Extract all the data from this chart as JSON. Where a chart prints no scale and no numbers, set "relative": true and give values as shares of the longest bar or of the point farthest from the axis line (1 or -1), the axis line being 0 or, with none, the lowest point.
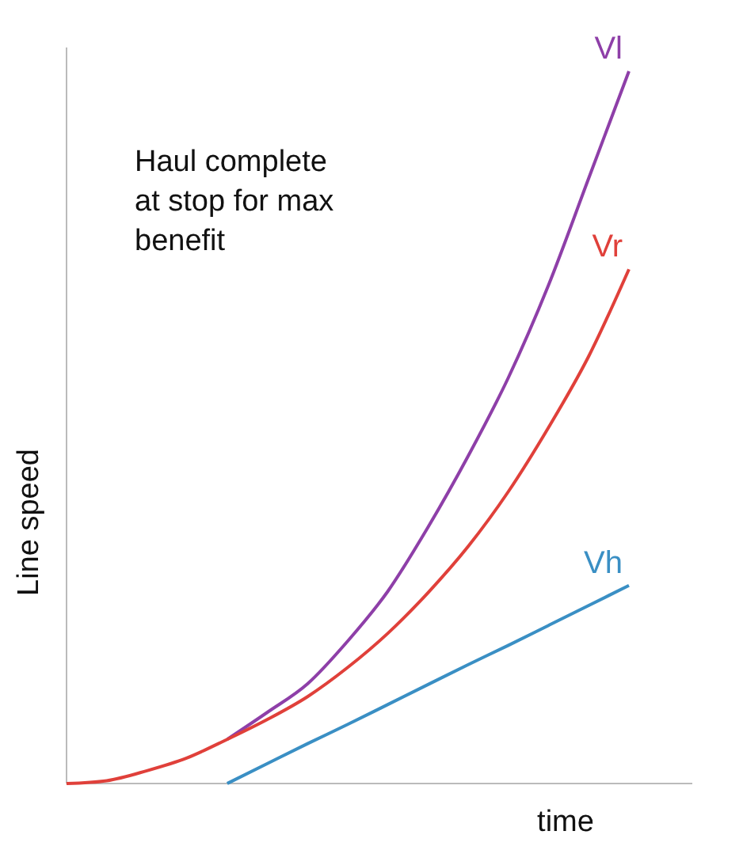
{
  "chart_data": {
    "type": "line",
    "relative": true,
    "xlabel": "time",
    "ylabel": "Line speed",
    "annotations": [
      "Haul complete at stop for max benefit"
    ],
    "categories": [
      null,
      null,
      null,
      null,
      null,
      null,
      null,
      null,
      null,
      null,
      null,
      null,
      null,
      null,
      null
    ],
    "series": [
      {
        "name": "Vl",
        "color": "#8e3fa8",
        "values": [
          null,
          null,
          null,
          null,
          0.062,
          0.1,
          0.14,
          0.2,
          0.27,
          0.36,
          0.46,
          0.57,
          0.7,
          0.85,
          1.0
        ]
      },
      {
        "name": "Vr",
        "color": "#e0403a",
        "values": [
          0,
          0.004,
          0.018,
          0.036,
          0.062,
          0.09,
          0.122,
          0.163,
          0.211,
          0.268,
          0.333,
          0.41,
          0.5,
          0.6,
          0.722
        ]
      },
      {
        "name": "Vh",
        "color": "#3a8fc4",
        "values": [
          null,
          null,
          null,
          null,
          0,
          0.028,
          0.056,
          0.083,
          0.111,
          0.139,
          0.167,
          0.194,
          0.222,
          0.25,
          0.278
        ]
      }
    ],
    "marker": "none",
    "line_style": "solid"
  }
}
